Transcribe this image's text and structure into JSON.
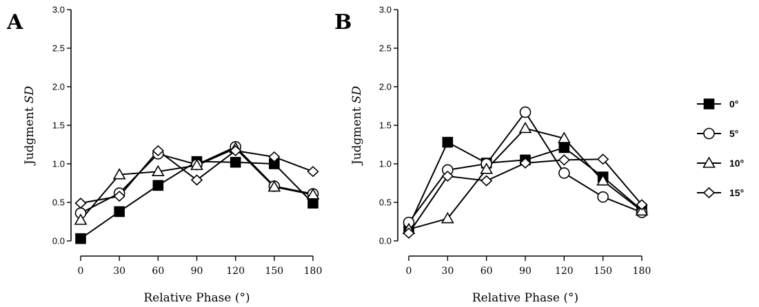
{
  "chart_data": [
    {
      "type": "line",
      "panel_label": "A",
      "xlabel": "Relative Phase (°)",
      "ylabel_main": "Judgment ",
      "ylabel_italic": "SD",
      "x": [
        0,
        30,
        60,
        90,
        120,
        150,
        180
      ],
      "x_ticks": [
        "0",
        "30",
        "60",
        "90",
        "120",
        "150",
        "180"
      ],
      "y_ticks": [
        "0.0",
        "0.5",
        "1.0",
        "1.5",
        "2.0",
        "2.5",
        "3.0"
      ],
      "xlim": [
        0,
        180
      ],
      "ylim": [
        0,
        3
      ],
      "grid": false,
      "series": [
        {
          "name": "0°",
          "marker": "square-filled",
          "values": [
            0.03,
            0.38,
            0.72,
            1.03,
            1.02,
            1.0,
            0.49
          ]
        },
        {
          "name": "5°",
          "marker": "circle-open",
          "values": [
            0.36,
            0.62,
            1.13,
            0.99,
            1.22,
            0.71,
            0.61
          ]
        },
        {
          "name": "10°",
          "marker": "triangle-open",
          "values": [
            0.27,
            0.86,
            0.9,
            0.98,
            1.2,
            0.7,
            0.6
          ]
        },
        {
          "name": "15°",
          "marker": "diamond-open",
          "values": [
            0.49,
            0.58,
            1.17,
            0.79,
            1.17,
            1.09,
            0.9
          ]
        }
      ]
    },
    {
      "type": "line",
      "panel_label": "B",
      "xlabel": "Relative Phase (°)",
      "ylabel_main": "Judgment ",
      "ylabel_italic": "SD",
      "x": [
        0,
        30,
        60,
        90,
        120,
        150,
        180
      ],
      "x_ticks": [
        "0",
        "30",
        "60",
        "90",
        "120",
        "150",
        "180"
      ],
      "y_ticks": [
        "0.0",
        "0.5",
        "1.0",
        "1.5",
        "2.0",
        "2.5",
        "3.0"
      ],
      "xlim": [
        0,
        180
      ],
      "ylim": [
        0,
        3
      ],
      "grid": false,
      "series": [
        {
          "name": "0°",
          "marker": "square-filled",
          "values": [
            0.19,
            1.28,
            1.01,
            1.05,
            1.21,
            0.83,
            0.4
          ]
        },
        {
          "name": "5°",
          "marker": "circle-open",
          "values": [
            0.24,
            0.92,
            1.0,
            1.67,
            0.88,
            0.57,
            0.37
          ]
        },
        {
          "name": "10°",
          "marker": "triangle-open",
          "values": [
            0.15,
            0.29,
            0.93,
            1.46,
            1.33,
            0.78,
            0.39
          ]
        },
        {
          "name": "15°",
          "marker": "diamond-open",
          "values": [
            0.1,
            0.84,
            0.78,
            1.01,
            1.05,
            1.06,
            0.47
          ]
        }
      ]
    }
  ],
  "legend": {
    "position": "right",
    "items": [
      {
        "label": "0°",
        "marker": "square-filled"
      },
      {
        "label": "5°",
        "marker": "circle-open"
      },
      {
        "label": "10°",
        "marker": "triangle-open"
      },
      {
        "label": "15°",
        "marker": "diamond-open"
      }
    ]
  }
}
